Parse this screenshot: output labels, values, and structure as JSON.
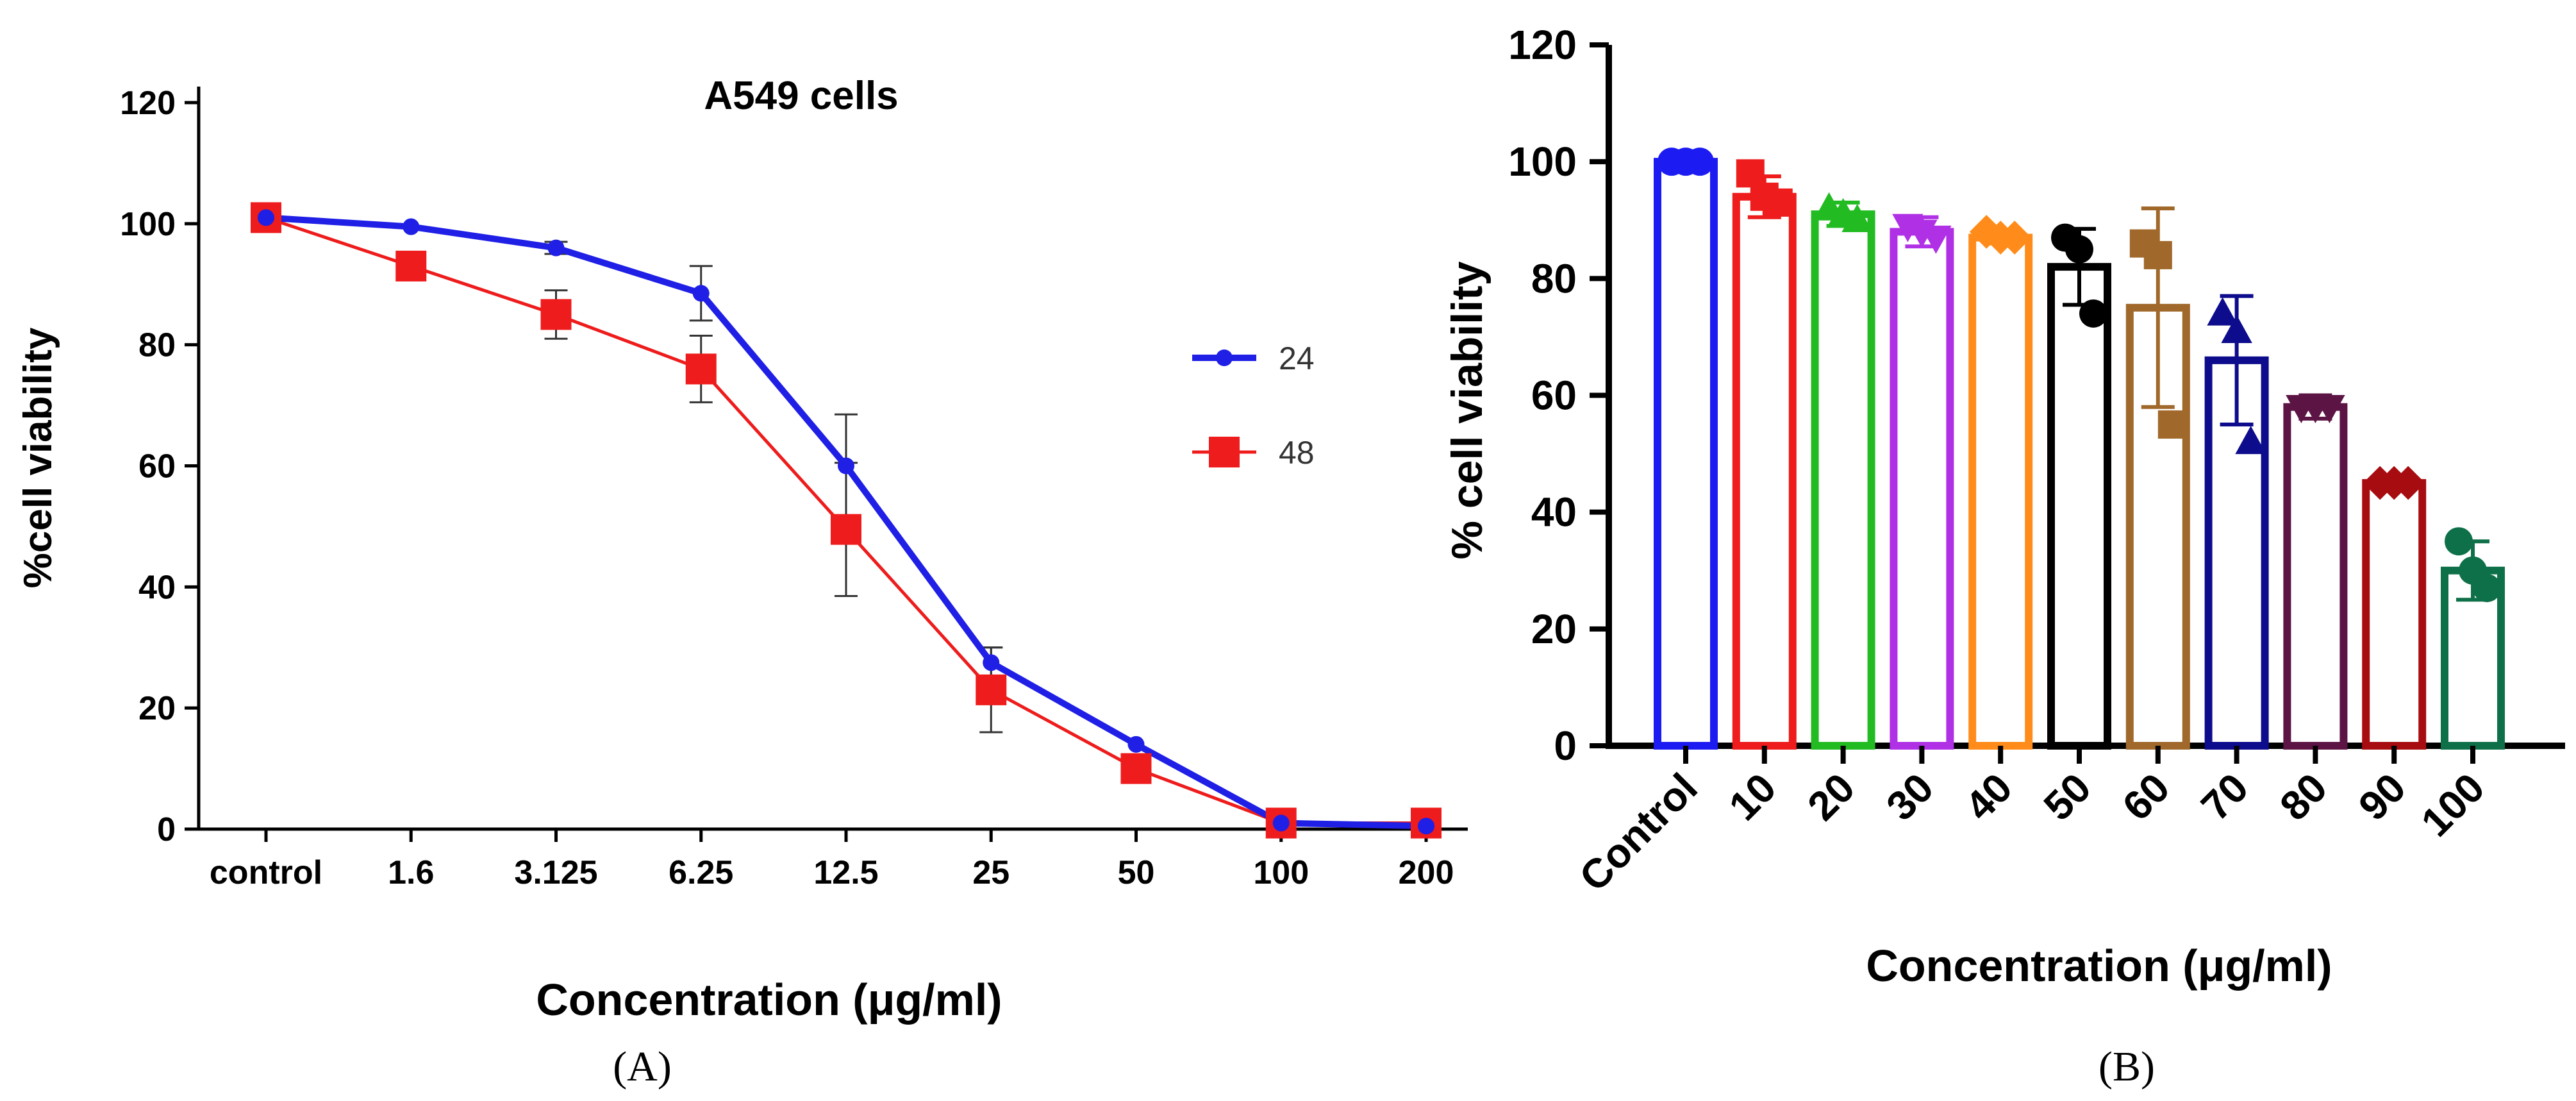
{
  "panel_labels": [
    "(A)",
    "(B)"
  ],
  "chart_data": [
    {
      "id": "A",
      "type": "line",
      "title": "A549 cells",
      "xlabel": "Concentration (μg/ml)",
      "ylabel": "%cell viability",
      "ylim": [
        0,
        120
      ],
      "yticks": [
        0,
        20,
        40,
        60,
        80,
        100,
        120
      ],
      "categories": [
        "control",
        "1.6",
        "3.125",
        "6.25",
        "12.5",
        "25",
        "50",
        "100",
        "200"
      ],
      "legend_position": "right",
      "series": [
        {
          "name": "24",
          "color": "#1f1fe6",
          "marker": "circle",
          "values": [
            101,
            99.5,
            96,
            88.5,
            60,
            27.5,
            14,
            1,
            0.5
          ],
          "errors": [
            0,
            0,
            1,
            4.5,
            8.5,
            2.5,
            0,
            0,
            0
          ]
        },
        {
          "name": "48",
          "color": "#ee1c1c",
          "marker": "square",
          "values": [
            101,
            93,
            85,
            76,
            49.5,
            23,
            10,
            1,
            1
          ],
          "errors": [
            0,
            0,
            4,
            5.5,
            11,
            7,
            0,
            0,
            0
          ]
        }
      ]
    },
    {
      "id": "B",
      "type": "bar",
      "xlabel": "Concentration (μg/ml)",
      "ylabel": "% cell viability",
      "ylim": [
        0,
        120
      ],
      "yticks": [
        0,
        20,
        40,
        60,
        80,
        100,
        120
      ],
      "categories": [
        "Control",
        "10",
        "20",
        "30",
        "40",
        "50",
        "60",
        "70",
        "80",
        "90",
        "100"
      ],
      "values": [
        100,
        94,
        91,
        88,
        87,
        82,
        75,
        66,
        58,
        45,
        30
      ],
      "errors": [
        0,
        3.5,
        2,
        2.5,
        1,
        6.5,
        17,
        11,
        2,
        1,
        5
      ],
      "colors": [
        "#1c1cf2",
        "#ee1c1c",
        "#22bb22",
        "#b030e6",
        "#ff8c1a",
        "#000000",
        "#a0682a",
        "#0c0c8c",
        "#5c1445",
        "#a60c10",
        "#0e7048"
      ],
      "markers": [
        "circle",
        "square",
        "triangle",
        "triangle-down",
        "diamond",
        "circle",
        "square",
        "triangle",
        "triangle-down",
        "diamond",
        "circle"
      ],
      "points": [
        [
          100,
          100,
          100
        ],
        [
          98,
          94,
          93
        ],
        [
          92,
          91,
          90
        ],
        [
          89,
          88,
          87
        ],
        [
          88,
          87,
          87
        ],
        [
          87,
          85,
          74
        ],
        [
          86,
          84,
          55
        ],
        [
          74,
          71,
          52
        ],
        [
          58,
          58,
          58
        ],
        [
          45,
          45,
          45
        ],
        [
          35,
          30,
          27
        ]
      ]
    }
  ]
}
